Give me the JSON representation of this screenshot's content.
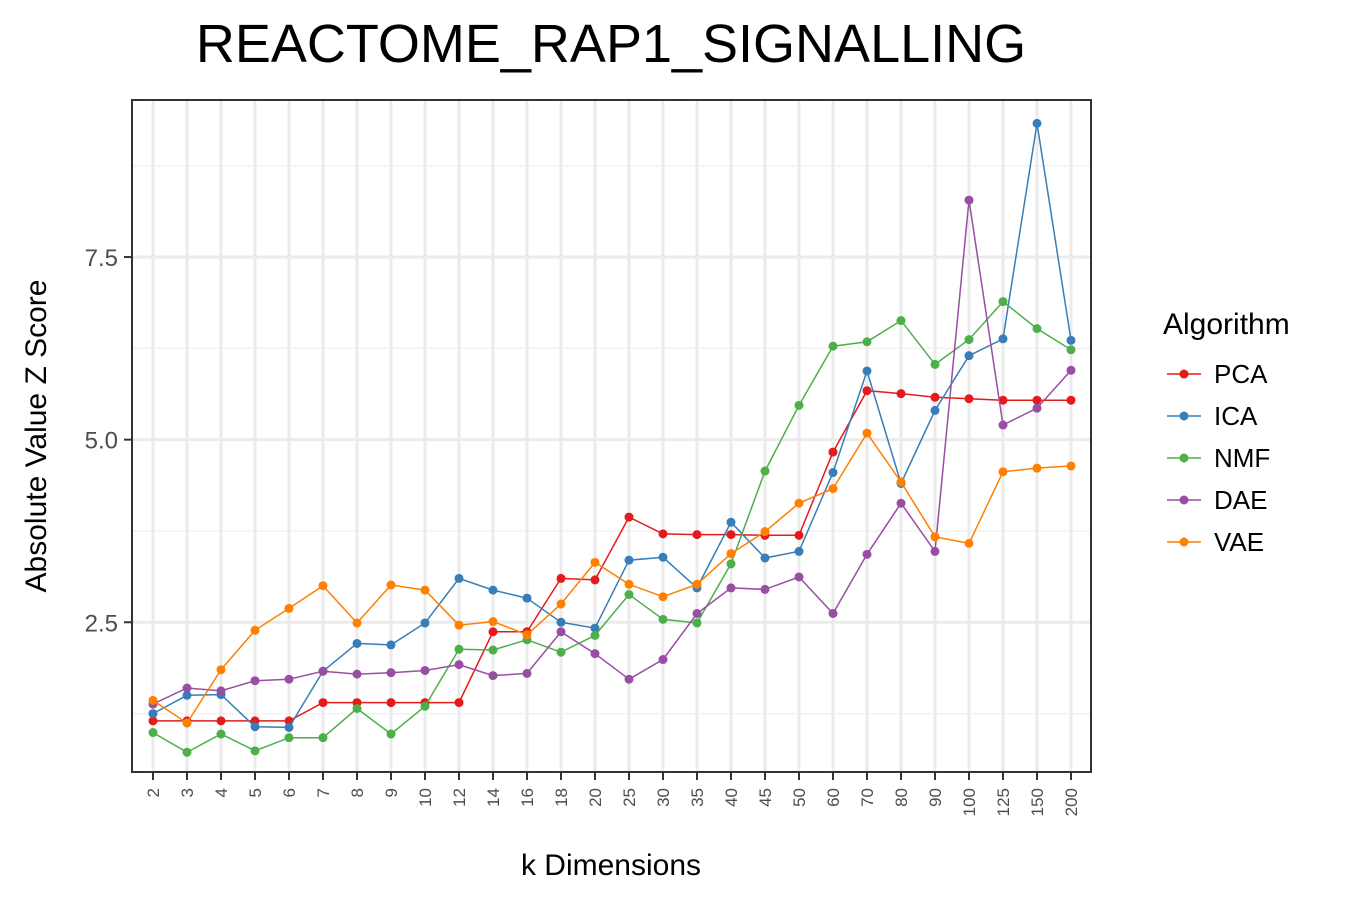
{
  "chart_data": {
    "type": "line",
    "title": "REACTOME_RAP1_SIGNALLING",
    "xlabel": "k Dimensions",
    "ylabel": "Absolute Value Z Score",
    "categories": [
      "2",
      "3",
      "4",
      "5",
      "6",
      "7",
      "8",
      "9",
      "10",
      "12",
      "14",
      "16",
      "18",
      "20",
      "25",
      "30",
      "35",
      "40",
      "45",
      "50",
      "60",
      "70",
      "80",
      "90",
      "100",
      "125",
      "150",
      "200"
    ],
    "yticks": [
      "2.5",
      "5.0",
      "7.5"
    ],
    "ylim": [
      0.45,
      9.65
    ],
    "grid": true,
    "legend": {
      "title": "Algorithm",
      "placement": "right"
    },
    "series": [
      {
        "name": "PCA",
        "color": "#E41A1C",
        "values": [
          1.15,
          1.15,
          1.15,
          1.15,
          1.15,
          1.4,
          1.4,
          1.4,
          1.4,
          1.4,
          2.37,
          2.37,
          3.1,
          3.08,
          3.94,
          3.71,
          3.7,
          3.7,
          3.69,
          3.69,
          4.83,
          5.67,
          5.63,
          5.58,
          5.56,
          5.54,
          5.54,
          5.54
        ]
      },
      {
        "name": "ICA",
        "color": "#377EB8",
        "values": [
          1.25,
          1.5,
          1.51,
          1.07,
          1.06,
          1.83,
          2.21,
          2.19,
          2.49,
          3.1,
          2.94,
          2.83,
          2.5,
          2.42,
          3.35,
          3.39,
          2.97,
          3.87,
          3.38,
          3.47,
          4.55,
          5.94,
          4.4,
          5.4,
          6.15,
          6.38,
          9.33,
          6.36
        ]
      },
      {
        "name": "NMF",
        "color": "#4DAF4A",
        "values": [
          0.99,
          0.72,
          0.97,
          0.74,
          0.92,
          0.92,
          1.32,
          0.97,
          1.35,
          2.13,
          2.12,
          2.26,
          2.09,
          2.32,
          2.88,
          2.54,
          2.49,
          3.3,
          4.57,
          5.47,
          6.28,
          6.34,
          6.63,
          6.03,
          6.37,
          6.89,
          6.52,
          6.23
        ]
      },
      {
        "name": "DAE",
        "color": "#984EA3",
        "values": [
          1.38,
          1.6,
          1.56,
          1.7,
          1.72,
          1.83,
          1.79,
          1.81,
          1.84,
          1.92,
          1.77,
          1.8,
          2.37,
          2.07,
          1.72,
          1.99,
          2.62,
          2.97,
          2.95,
          3.12,
          2.62,
          3.43,
          4.13,
          3.47,
          8.28,
          5.2,
          5.43,
          5.95
        ]
      },
      {
        "name": "VAE",
        "color": "#FF7F00",
        "values": [
          1.43,
          1.12,
          1.85,
          2.39,
          2.69,
          3.0,
          2.49,
          3.01,
          2.94,
          2.46,
          2.51,
          2.33,
          2.75,
          3.32,
          3.02,
          2.85,
          3.02,
          3.44,
          3.74,
          4.13,
          4.33,
          5.09,
          4.42,
          3.67,
          3.58,
          4.56,
          4.61,
          4.64
        ]
      }
    ]
  }
}
